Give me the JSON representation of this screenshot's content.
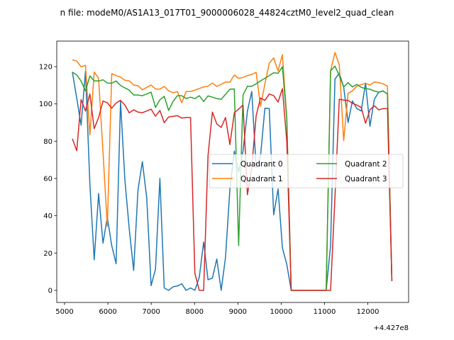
{
  "chart_data": {
    "type": "line",
    "title": "n file: modeM0/AS1A13_017T01_9000006028_44824cztM0_level2_quad_clean",
    "xlabel": "",
    "ylabel": "",
    "x_offset_label": "+4.427e8",
    "xlim": [
      4820,
      12940
    ],
    "ylim": [
      -6.5,
      133.7
    ],
    "xticks": [
      5000,
      6000,
      7000,
      8000,
      9000,
      10000,
      11000,
      12000
    ],
    "xtick_labels": [
      "5000",
      "6000",
      "7000",
      "8000",
      "9000",
      "10000",
      "11000",
      "12000"
    ],
    "yticks": [
      0,
      20,
      40,
      60,
      80,
      100,
      120
    ],
    "ytick_labels": [
      "0",
      "20",
      "40",
      "60",
      "80",
      "100",
      "120"
    ],
    "grid": false,
    "legend_position": "center right",
    "legend_columns": 2,
    "x": [
      5180,
      5281,
      5382,
      5483,
      5584,
      5685,
      5786,
      5887,
      5988,
      6089,
      6190,
      6291,
      6392,
      6493,
      6594,
      6695,
      6796,
      6897,
      6998,
      7099,
      7200,
      7301,
      7402,
      7503,
      7604,
      7705,
      7806,
      7907,
      8008,
      8109,
      8210,
      8311,
      8412,
      8513,
      8614,
      8715,
      8816,
      8917,
      9018,
      9119,
      9220,
      9321,
      9422,
      9523,
      9624,
      9725,
      9826,
      9927,
      10028,
      10129,
      10230,
      10331,
      10432,
      10533,
      10634,
      10735,
      10836,
      10937,
      11038,
      11139,
      11240,
      11341,
      11442,
      11543,
      11644,
      11745,
      11846,
      11947,
      12048,
      12149,
      12250,
      12351,
      12452,
      12553
    ],
    "series": [
      {
        "name": "Quadrant 0",
        "color": "#1f77b4",
        "values": [
          117.1,
          103,
          88.6,
          117.5,
          57,
          16.4,
          51.9,
          25.3,
          39.2,
          24,
          14.3,
          101.3,
          59.5,
          32.9,
          10.7,
          53.8,
          69,
          49.4,
          2.5,
          11.4,
          60.1,
          1.3,
          0,
          1.9,
          2.3,
          3.5,
          0,
          1.3,
          0,
          7,
          25.9,
          5.7,
          6.6,
          16.8,
          0,
          17.7,
          54.4,
          74.7,
          63.5,
          74.7,
          96.2,
          106.7,
          65.8,
          72.2,
          97.7,
          97.5,
          40.5,
          54.4,
          22.8,
          13.9,
          0,
          0,
          0,
          0,
          0,
          0,
          0,
          0,
          0,
          24,
          113.3,
          116.5,
          109,
          90,
          101.6,
          97.5,
          96.2,
          111.2,
          88,
          102.5,
          106.3,
          107,
          105.3,
          5
        ]
      },
      {
        "name": "Quadrant 1",
        "color": "#ff7f0e",
        "values": [
          123.7,
          123,
          119.9,
          120.7,
          83.3,
          117.1,
          113.7,
          74,
          34.4,
          116.2,
          115.2,
          114.4,
          112.7,
          112.4,
          110.1,
          109.8,
          107.6,
          108.9,
          110.1,
          108,
          107.9,
          109.4,
          107,
          106,
          106.6,
          100.6,
          106.6,
          106.6,
          107.4,
          108.2,
          109.1,
          109.5,
          111.2,
          109.4,
          110.5,
          111.7,
          111.7,
          115.5,
          113.7,
          114.2,
          115.2,
          115.8,
          116.9,
          98.7,
          110.8,
          121.8,
          124.7,
          117.7,
          126.4,
          92.4,
          0,
          0,
          0,
          0,
          0,
          0,
          0,
          0,
          0,
          117.7,
          127.6,
          120.9,
          80.4,
          105.7,
          107,
          109.5,
          110.4,
          111,
          110.1,
          111.8,
          111.4,
          110.8,
          109.5,
          5
        ]
      },
      {
        "name": "Quadrant 2",
        "color": "#2ca02c",
        "values": [
          117.1,
          115.5,
          112.3,
          107,
          115,
          112.3,
          112.3,
          112.9,
          111.2,
          111.1,
          112.3,
          109.9,
          108.6,
          107.4,
          104.8,
          104.8,
          104.4,
          105.3,
          106.3,
          98.1,
          102.2,
          104.1,
          96.5,
          101.3,
          104.4,
          104.4,
          102.9,
          103.6,
          102.8,
          104.4,
          101.3,
          104.3,
          103.6,
          102.8,
          102.5,
          105.1,
          107.9,
          108,
          24,
          104.8,
          109.5,
          109.5,
          110.8,
          112.4,
          113.7,
          115.2,
          116.7,
          116.4,
          119.9,
          91.8,
          0,
          0,
          0,
          0,
          0,
          0,
          0,
          0,
          0,
          117.7,
          120.3,
          115.2,
          109.1,
          111.4,
          109.1,
          110.5,
          108.9,
          108.2,
          107.9,
          106.9,
          106.3,
          106.9,
          105.3,
          5
        ]
      },
      {
        "name": "Quadrant 3",
        "color": "#d62728",
        "values": [
          81.3,
          74.9,
          102.3,
          96.2,
          105.3,
          86.7,
          92.7,
          101.5,
          100.6,
          97.7,
          100.5,
          101.9,
          99.4,
          95.2,
          96.8,
          95.6,
          95.3,
          96.2,
          97.2,
          93.4,
          96.5,
          89.9,
          93,
          93.3,
          93.7,
          92.4,
          92.7,
          92.7,
          9.1,
          0,
          0,
          72.2,
          95.6,
          89.3,
          87.4,
          92.7,
          78.2,
          95.2,
          97.2,
          99.4,
          51.3,
          65.8,
          93.7,
          103.2,
          101.9,
          105.3,
          104.4,
          101,
          108.2,
          79.8,
          0,
          0,
          0,
          0,
          0,
          0,
          0,
          0,
          0,
          0,
          50,
          102.5,
          102.1,
          101.9,
          100.3,
          99.4,
          98.1,
          89.6,
          96.8,
          99,
          96.8,
          97.5,
          97.5,
          5
        ]
      }
    ]
  }
}
